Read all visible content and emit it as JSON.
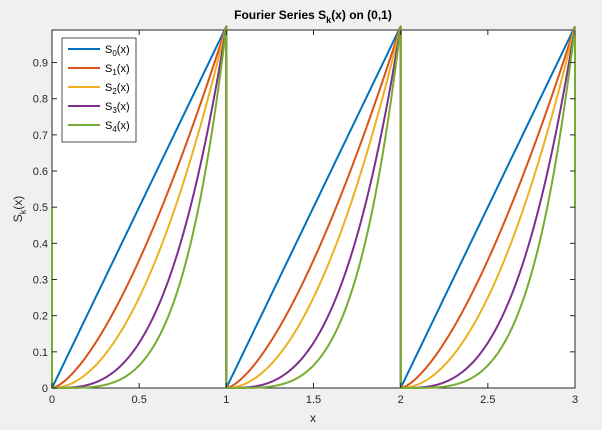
{
  "chart_data": {
    "type": "line",
    "title": {
      "main": "Fourier Series S",
      "sub": "k",
      "rest": "(x) on (0,1)"
    },
    "xlabel": "x",
    "ylabel": {
      "main": "S",
      "sub": "k",
      "rest": "(x)"
    },
    "xlim": [
      0,
      3
    ],
    "ylim": [
      0,
      0.99
    ],
    "xticks": [
      0,
      0.5,
      1,
      1.5,
      2,
      2.5,
      3
    ],
    "xtick_labels": [
      "0",
      "0.5",
      "1",
      "1.5",
      "2",
      "2.5",
      "3"
    ],
    "yticks": [
      0,
      0.1,
      0.2,
      0.3,
      0.4,
      0.5,
      0.6,
      0.7,
      0.8,
      0.9
    ],
    "ytick_labels": [
      "0",
      "0.1",
      "0.2",
      "0.3",
      "0.4",
      "0.5",
      "0.6",
      "0.7",
      "0.8",
      "0.9"
    ],
    "grid": false,
    "legend_position": "top-left",
    "series": [
      {
        "name_main": "S",
        "name_sub": "0",
        "name_rest": "(x)",
        "color": "#0072BD",
        "exponent": 1
      },
      {
        "name_main": "S",
        "name_sub": "1",
        "name_rest": "(x)",
        "color": "#D95319",
        "exponent": 1.5
      },
      {
        "name_main": "S",
        "name_sub": "2",
        "name_rest": "(x)",
        "color": "#EDB120",
        "exponent": 2
      },
      {
        "name_main": "S",
        "name_sub": "3",
        "name_rest": "(x)",
        "color": "#7E2F8E",
        "exponent": 3
      },
      {
        "name_main": "S",
        "name_sub": "4",
        "name_rest": "(x)",
        "color": "#77AC30",
        "exponent": 4
      }
    ]
  }
}
